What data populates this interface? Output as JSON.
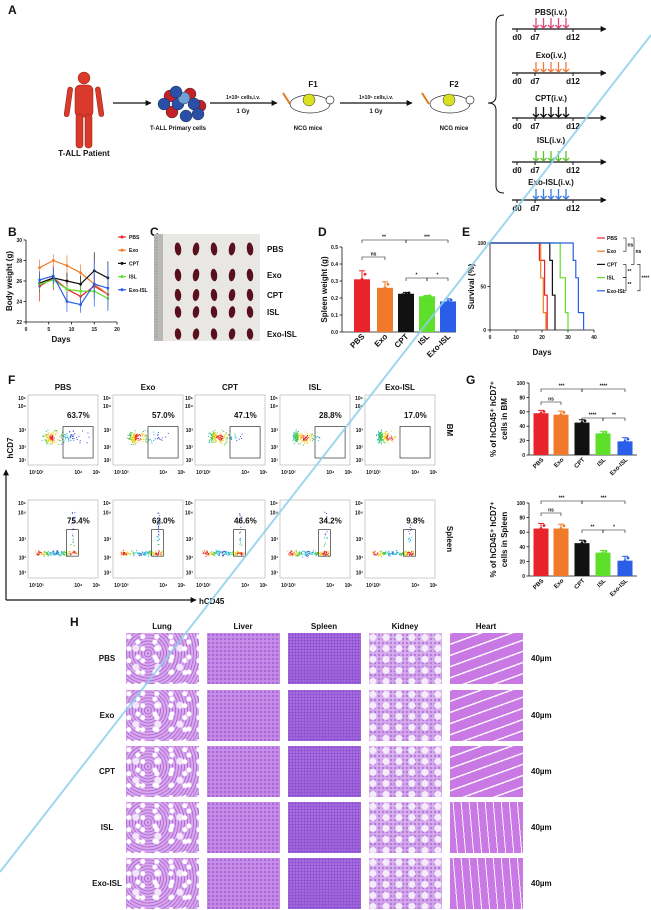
{
  "panel_labels": {
    "A": "A",
    "B": "B",
    "C": "C",
    "D": "D",
    "E": "E",
    "F": "F",
    "G": "G",
    "H": "H"
  },
  "A": {
    "patient_label": "T-ALL Patient",
    "cells_label": "T-ALL Primary cells",
    "transfer1": {
      "cells": "1×10⁶ cells,i.v.",
      "dose": "1 Gy"
    },
    "f1": "F1",
    "mice1": "NCG mice",
    "transfer2": {
      "cells": "1×10⁶ cells,i.v.",
      "dose": "1 Gy"
    },
    "f2": "F2",
    "mice2": "NCG mice",
    "timelines": [
      {
        "label": "PBS(i.v.)",
        "color": "#e2457f"
      },
      {
        "label": "Exo(i.v.)",
        "color": "#f07a3a"
      },
      {
        "label": "CPT(i.v.)",
        "color": "#111111"
      },
      {
        "label": "ISL(i.v.)",
        "color": "#5cc02a"
      },
      {
        "label": "Exo-ISL(i.v.)",
        "color": "#3a7ae8"
      }
    ],
    "timeline_ticks": [
      "d0",
      "d7",
      "d12"
    ]
  },
  "C": {
    "rows": [
      "PBS",
      "Exo",
      "CPT",
      "ISL",
      "Exo-ISL"
    ]
  },
  "F": {
    "columns": [
      "PBS",
      "Exo",
      "CPT",
      "ISL",
      "Exo-ISL"
    ],
    "rows": [
      "BM",
      "Spleen"
    ],
    "percentages": {
      "BM": [
        "63.7%",
        "57.0%",
        "47.1%",
        "28.8%",
        "17.0%"
      ],
      "Spleen": [
        "75.4%",
        "62.0%",
        "46.6%",
        "34.2%",
        "9.8%"
      ]
    },
    "xticks": [
      "10¹10²",
      "10⁴",
      "10⁵"
    ],
    "yticks": [
      "10⁵",
      "10⁴",
      "10³",
      "10²",
      "10¹"
    ],
    "xlabel": "hCD45",
    "ylabel": "hCD7"
  },
  "H": {
    "columns": [
      "Lung",
      "Liver",
      "Spleen",
      "Kidney",
      "Heart"
    ],
    "rows": [
      "PBS",
      "Exo",
      "CPT",
      "ISL",
      "Exo-ISL"
    ],
    "scale_bar": "40µm"
  },
  "colors": {
    "PBS": "#e8242a",
    "Exo": "#f07a2a",
    "CPT": "#111111",
    "ISL": "#5ee02a",
    "Exo-ISL": "#2a5ee8"
  },
  "chart_data": [
    {
      "type": "line",
      "panel": "B",
      "xlabel": "Days",
      "ylabel": "Body weight (g)",
      "xlim": [
        0,
        20
      ],
      "ylim": [
        22,
        30
      ],
      "xticks": [
        "0",
        "5",
        "10",
        "15",
        "20"
      ],
      "yticks": [
        "22",
        "24",
        "26",
        "28",
        "30"
      ],
      "x": [
        3,
        6,
        9,
        12,
        15,
        18
      ],
      "legend": "right",
      "series": [
        {
          "name": "PBS",
          "color": "#e8242a",
          "values": [
            25.5,
            26.3,
            25.2,
            24.5,
            25.5,
            24.7
          ],
          "error": [
            1.5,
            1.2,
            1.0,
            1.0,
            1.2,
            1.2
          ]
        },
        {
          "name": "Exo",
          "color": "#f07a2a",
          "values": [
            27.3,
            28.0,
            27.5,
            26.8,
            25.7,
            24.7
          ],
          "error": [
            0.8,
            0.6,
            1.0,
            0.8,
            0.8,
            1.0
          ]
        },
        {
          "name": "CPT",
          "color": "#111111",
          "values": [
            25.8,
            26.3,
            26.0,
            25.7,
            27.0,
            26.3
          ],
          "error": [
            0.8,
            1.0,
            0.8,
            0.8,
            1.8,
            1.6
          ]
        },
        {
          "name": "ISL",
          "color": "#5ee02a",
          "values": [
            25.7,
            26.1,
            25.2,
            25.0,
            25.0,
            24.3
          ],
          "error": [
            0.6,
            0.8,
            0.5,
            0.5,
            0.8,
            1.2
          ]
        },
        {
          "name": "Exo-ISL",
          "color": "#2a5ee8",
          "values": [
            26.1,
            26.5,
            24.0,
            23.7,
            25.7,
            25.3
          ],
          "error": [
            0.8,
            0.8,
            1.0,
            0.8,
            2.2,
            2.2
          ]
        }
      ]
    },
    {
      "type": "bar",
      "panel": "D",
      "ylabel": "Spleen weight (g)",
      "ylim": [
        0,
        0.5
      ],
      "yticks": [
        "0.0",
        "0.1",
        "0.2",
        "0.3",
        "0.4",
        "0.5"
      ],
      "categories": [
        "PBS",
        "Exo",
        "CPT",
        "ISL",
        "Exo-ISL"
      ],
      "values": [
        0.31,
        0.26,
        0.225,
        0.21,
        0.18
      ],
      "errors": [
        0.05,
        0.035,
        0.008,
        0.005,
        0.015
      ],
      "colors": [
        "#e8242a",
        "#f07a2a",
        "#111111",
        "#5ee02a",
        "#2a5ee8"
      ],
      "significance": [
        {
          "from": 0,
          "to": 2,
          "label": "**"
        },
        {
          "from": 2,
          "to": 4,
          "label": "***"
        },
        {
          "from": 0,
          "to": 1,
          "label": "ns"
        },
        {
          "from": 2,
          "to": 3,
          "label": "*"
        },
        {
          "from": 3,
          "to": 4,
          "label": "*"
        }
      ]
    },
    {
      "type": "line",
      "subtype": "survival",
      "panel": "E",
      "xlabel": "Days",
      "ylabel": "Survival (%)",
      "xlim": [
        0,
        40
      ],
      "ylim": [
        0,
        100
      ],
      "xticks": [
        "0",
        "10",
        "20",
        "30",
        "40"
      ],
      "yticks": [
        "0",
        "50",
        "100"
      ],
      "legend": "right",
      "series": [
        {
          "name": "PBS",
          "color": "#e8242a",
          "x": [
            0,
            19,
            21,
            22
          ],
          "y": [
            100,
            80,
            40,
            0
          ]
        },
        {
          "name": "Exo",
          "color": "#f07a2a",
          "x": [
            0,
            19.5,
            20.5,
            21.5
          ],
          "y": [
            100,
            60,
            20,
            0
          ]
        },
        {
          "name": "CPT",
          "color": "#111111",
          "x": [
            0,
            23,
            24,
            25
          ],
          "y": [
            100,
            80,
            40,
            0
          ]
        },
        {
          "name": "ISL",
          "color": "#5ee02a",
          "x": [
            0,
            27,
            29,
            30
          ],
          "y": [
            100,
            60,
            20,
            0
          ]
        },
        {
          "name": "Exo-ISL",
          "color": "#2a5ee8",
          "x": [
            0,
            32,
            33,
            34,
            36
          ],
          "y": [
            100,
            80,
            60,
            20,
            0
          ]
        }
      ],
      "significance": [
        {
          "from": 0,
          "to": 1,
          "label": "ns"
        },
        {
          "from": 0,
          "to": 2,
          "label": "ns"
        },
        {
          "from": 2,
          "to": 3,
          "label": "**"
        },
        {
          "from": 3,
          "to": 4,
          "label": "**"
        },
        {
          "from": 2,
          "to": 4,
          "label": "****"
        }
      ]
    },
    {
      "type": "bar",
      "panel": "G-BM",
      "ylabel": [
        "% of hCD45⁺ hCD7⁺",
        "cells in BM"
      ],
      "ylim": [
        0,
        100
      ],
      "yticks": [
        "0",
        "20",
        "40",
        "60",
        "80",
        "100"
      ],
      "categories": [
        "PBS",
        "Exo",
        "CPT",
        "ISL",
        "Exo-ISL"
      ],
      "values": [
        58,
        56,
        45,
        30,
        19
      ],
      "errors": [
        4,
        5,
        4,
        3,
        5
      ],
      "colors": [
        "#e8242a",
        "#f07a2a",
        "#111111",
        "#5ee02a",
        "#2a5ee8"
      ],
      "significance": [
        {
          "from": 0,
          "to": 2,
          "label": "***"
        },
        {
          "from": 2,
          "to": 4,
          "label": "****"
        },
        {
          "from": 0,
          "to": 1,
          "label": "ns"
        },
        {
          "from": 2,
          "to": 3,
          "label": "****"
        },
        {
          "from": 3,
          "to": 4,
          "label": "**"
        }
      ]
    },
    {
      "type": "bar",
      "panel": "G-Spleen",
      "ylabel": [
        "% of hCD45⁺ hCD7⁺",
        "cells in Spleen"
      ],
      "ylim": [
        0,
        100
      ],
      "yticks": [
        "0",
        "20",
        "40",
        "60",
        "80",
        "100"
      ],
      "categories": [
        "PBS",
        "Exo",
        "CPT",
        "ISL",
        "Exo-ISL"
      ],
      "values": [
        65,
        65,
        45,
        32,
        21
      ],
      "errors": [
        7,
        6,
        4,
        3,
        6
      ],
      "colors": [
        "#e8242a",
        "#f07a2a",
        "#111111",
        "#5ee02a",
        "#2a5ee8"
      ],
      "significance": [
        {
          "from": 0,
          "to": 2,
          "label": "***"
        },
        {
          "from": 2,
          "to": 4,
          "label": "***"
        },
        {
          "from": 0,
          "to": 1,
          "label": "ns"
        },
        {
          "from": 2,
          "to": 3,
          "label": "**"
        },
        {
          "from": 3,
          "to": 4,
          "label": "*"
        }
      ]
    }
  ]
}
